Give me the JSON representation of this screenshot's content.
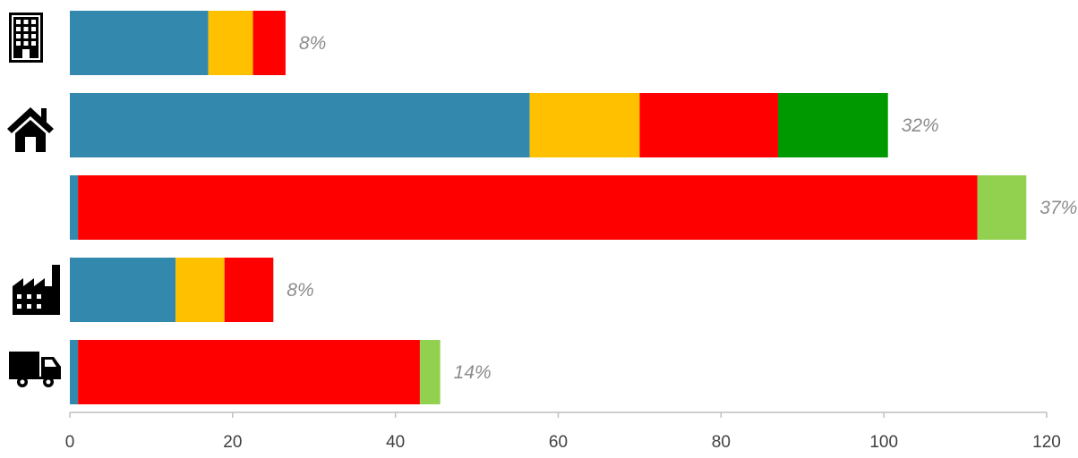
{
  "chart_data": {
    "type": "bar",
    "orientation": "horizontal",
    "stacked": true,
    "title": "",
    "xlabel": "",
    "ylabel": "",
    "xlim": [
      0,
      120
    ],
    "x_ticks": [
      0,
      20,
      40,
      60,
      80,
      100,
      120
    ],
    "grid": false,
    "legend": "none",
    "categories": [
      "office-building",
      "house",
      "",
      "factory",
      "truck"
    ],
    "category_icons": [
      "building-icon",
      "house-icon",
      "",
      "factory-icon",
      "truck-icon"
    ],
    "series": [
      {
        "color": "#3289ad",
        "values": [
          17,
          56.5,
          1,
          13,
          1
        ]
      },
      {
        "color": "#ffc000",
        "values": [
          5.5,
          13.5,
          0,
          6,
          0
        ]
      },
      {
        "color": "#ff0000",
        "values": [
          4,
          17,
          110.5,
          6,
          42
        ]
      },
      {
        "color": "#009900",
        "values": [
          0,
          13.5,
          0,
          0,
          0
        ]
      },
      {
        "color": "#92d050",
        "values": [
          0,
          0,
          6,
          0,
          2.5
        ]
      }
    ],
    "bar_labels": [
      "8%",
      "32%",
      "37%",
      "8%",
      "14%"
    ]
  }
}
